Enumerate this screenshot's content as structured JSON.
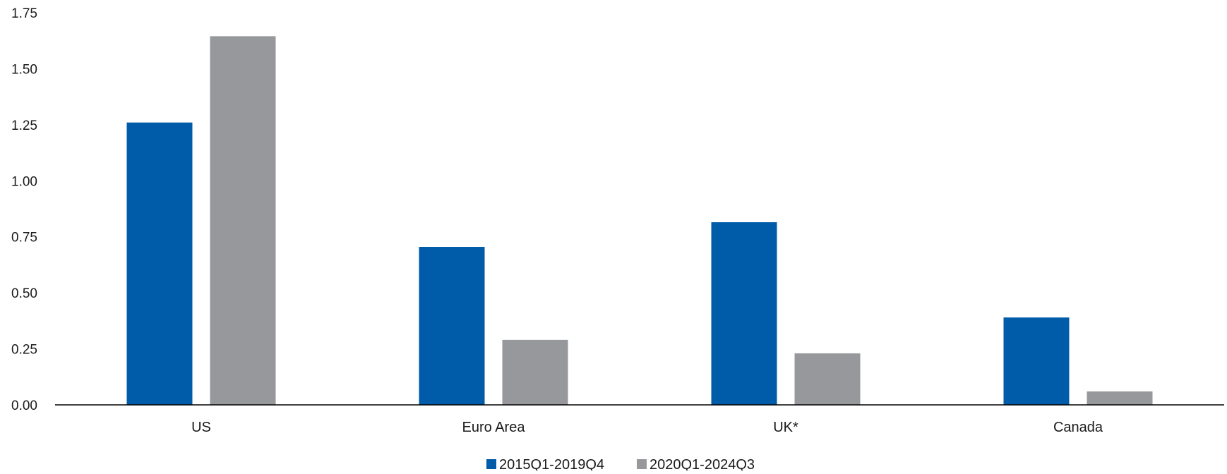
{
  "chart_data": {
    "type": "bar",
    "categories": [
      "US",
      "Euro Area",
      "UK*",
      "Canada"
    ],
    "series": [
      {
        "name": "2015Q1-2019Q4",
        "values": [
          1.26,
          0.705,
          0.815,
          0.39
        ],
        "color": "#005CA8"
      },
      {
        "name": "2020Q1-2024Q3",
        "values": [
          1.645,
          0.29,
          0.23,
          0.06
        ],
        "color": "#97989C"
      }
    ],
    "ylim": [
      0,
      1.75
    ],
    "yticks": [
      "0.00",
      "0.25",
      "0.50",
      "0.75",
      "1.00",
      "1.25",
      "1.50",
      "1.75"
    ],
    "title": "",
    "xlabel": "",
    "ylabel": "",
    "grid": false,
    "legend_position": "bottom-center"
  }
}
